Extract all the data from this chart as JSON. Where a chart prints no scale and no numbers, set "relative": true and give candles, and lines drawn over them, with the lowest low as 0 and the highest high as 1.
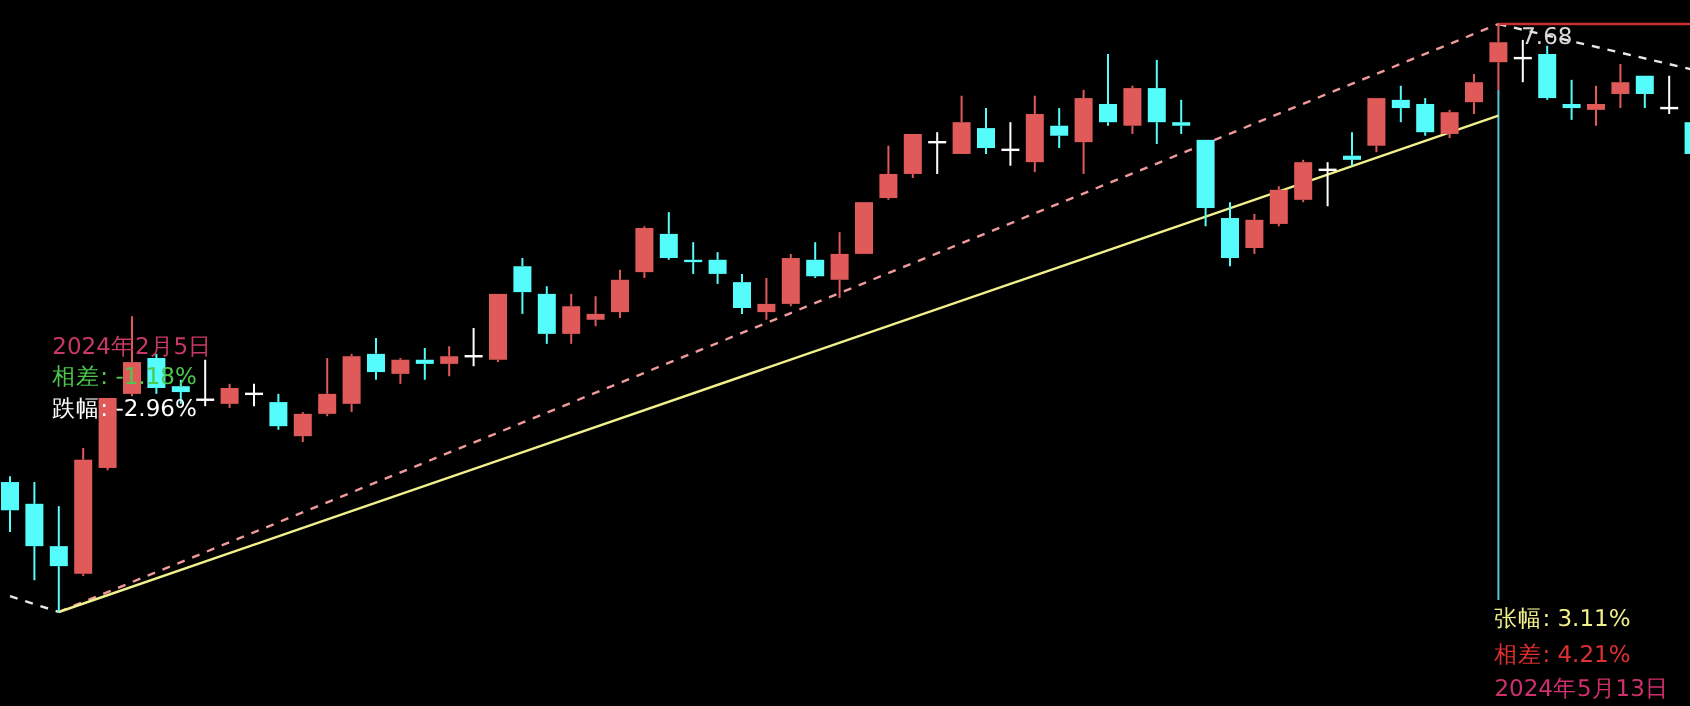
{
  "chart_data": {
    "type": "candlestick",
    "relative": true,
    "categories": [
      null,
      null,
      null,
      null,
      null,
      null,
      null,
      null,
      null,
      null,
      null,
      null,
      null,
      null,
      null,
      null,
      null,
      null,
      null,
      null,
      null,
      null,
      null,
      null,
      null,
      null,
      null,
      null,
      null,
      null,
      null,
      null,
      null,
      null,
      null,
      null,
      null,
      null,
      null,
      null,
      null,
      null,
      null,
      null,
      null,
      null,
      null,
      null,
      null,
      null,
      null,
      null,
      null,
      null,
      null,
      null,
      null,
      null,
      null,
      null,
      null,
      null,
      null,
      null,
      null,
      null,
      null,
      null,
      null,
      null
    ],
    "ohlc": [
      [
        0.221,
        0.231,
        0.136,
        0.173
      ],
      [
        0.184,
        0.221,
        0.054,
        0.112
      ],
      [
        0.112,
        0.18,
        0,
        0.078
      ],
      [
        0.065,
        0.279,
        0.061,
        0.259
      ],
      [
        0.245,
        0.364,
        0.241,
        0.364
      ],
      [
        0.371,
        0.503,
        0.367,
        0.425
      ],
      [
        0.432,
        0.439,
        0.371,
        0.381
      ],
      [
        0.384,
        0.395,
        0.354,
        0.374
      ],
      [
        0.361,
        0.429,
        0.35,
        0.361
      ],
      [
        0.354,
        0.388,
        0.347,
        0.381
      ],
      [
        0.371,
        0.388,
        0.35,
        0.371
      ],
      [
        0.357,
        0.371,
        0.31,
        0.316
      ],
      [
        0.299,
        0.34,
        0.289,
        0.337
      ],
      [
        0.337,
        0.432,
        0.333,
        0.371
      ],
      [
        0.354,
        0.439,
        0.34,
        0.435
      ],
      [
        0.439,
        0.466,
        0.395,
        0.408
      ],
      [
        0.405,
        0.432,
        0.388,
        0.429
      ],
      [
        0.429,
        0.449,
        0.395,
        0.422
      ],
      [
        0.422,
        0.452,
        0.401,
        0.435
      ],
      [
        0.435,
        0.483,
        0.418,
        0.435
      ],
      [
        0.429,
        0.541,
        0.425,
        0.541
      ],
      [
        0.588,
        0.602,
        0.507,
        0.544
      ],
      [
        0.541,
        0.554,
        0.456,
        0.473
      ],
      [
        0.473,
        0.541,
        0.456,
        0.52
      ],
      [
        0.497,
        0.537,
        0.486,
        0.507
      ],
      [
        0.51,
        0.582,
        0.5,
        0.565
      ],
      [
        0.578,
        0.656,
        0.568,
        0.653
      ],
      [
        0.643,
        0.68,
        0.599,
        0.602
      ],
      [
        0.599,
        0.629,
        0.575,
        0.595
      ],
      [
        0.599,
        0.612,
        0.558,
        0.575
      ],
      [
        0.561,
        0.575,
        0.507,
        0.517
      ],
      [
        0.51,
        0.568,
        0.497,
        0.524
      ],
      [
        0.524,
        0.609,
        0.52,
        0.602
      ],
      [
        0.599,
        0.629,
        0.568,
        0.571
      ],
      [
        0.565,
        0.646,
        0.534,
        0.609
      ],
      [
        0.609,
        0.697,
        0.609,
        0.697
      ],
      [
        0.704,
        0.793,
        0.701,
        0.745
      ],
      [
        0.745,
        0.813,
        0.738,
        0.813
      ],
      [
        0.799,
        0.816,
        0.745,
        0.799
      ],
      [
        0.779,
        0.878,
        0.779,
        0.833
      ],
      [
        0.823,
        0.857,
        0.779,
        0.789
      ],
      [
        0.786,
        0.833,
        0.759,
        0.786
      ],
      [
        0.765,
        0.878,
        0.748,
        0.847
      ],
      [
        0.827,
        0.857,
        0.789,
        0.81
      ],
      [
        0.799,
        0.888,
        0.745,
        0.874
      ],
      [
        0.864,
        0.949,
        0.827,
        0.833
      ],
      [
        0.827,
        0.895,
        0.813,
        0.891
      ],
      [
        0.891,
        0.939,
        0.796,
        0.833
      ],
      [
        0.833,
        0.871,
        0.813,
        0.827
      ],
      [
        0.803,
        0.803,
        0.656,
        0.687
      ],
      [
        0.67,
        0.697,
        0.588,
        0.602
      ],
      [
        0.619,
        0.677,
        0.609,
        0.667
      ],
      [
        0.66,
        0.724,
        0.656,
        0.718
      ],
      [
        0.701,
        0.769,
        0.697,
        0.765
      ],
      [
        0.752,
        0.765,
        0.69,
        0.752
      ],
      [
        0.776,
        0.816,
        0.759,
        0.769
      ],
      [
        0.793,
        0.874,
        0.782,
        0.874
      ],
      [
        0.871,
        0.895,
        0.833,
        0.857
      ],
      [
        0.864,
        0.874,
        0.81,
        0.816
      ],
      [
        0.813,
        0.854,
        0.806,
        0.85
      ],
      [
        0.867,
        0.915,
        0.847,
        0.901
      ],
      [
        0.935,
        1,
        0.888,
        0.969
      ],
      [
        0.942,
        0.973,
        0.901,
        0.942
      ],
      [
        0.949,
        0.963,
        0.871,
        0.874
      ],
      [
        0.864,
        0.905,
        0.837,
        0.857
      ],
      [
        0.854,
        0.895,
        0.827,
        0.864
      ],
      [
        0.881,
        0.932,
        0.857,
        0.901
      ],
      [
        0.912,
        0.912,
        0.857,
        0.881
      ],
      [
        0.857,
        0.912,
        0.847,
        0.857
      ],
      [
        0.833,
        0.833,
        0.779,
        0.779
      ]
    ],
    "series": [
      {
        "type": "line",
        "color": "#f09a9a",
        "line_style": "dashed",
        "values": [
          null,
          null,
          0,
          null,
          null,
          null,
          null,
          null,
          null,
          null,
          null,
          null,
          null,
          null,
          null,
          null,
          null,
          null,
          null,
          null,
          null,
          null,
          null,
          null,
          null,
          null,
          null,
          null,
          null,
          null,
          null,
          null,
          null,
          null,
          null,
          null,
          null,
          null,
          null,
          null,
          null,
          null,
          null,
          null,
          null,
          null,
          null,
          null,
          null,
          null,
          null,
          null,
          null,
          null,
          null,
          null,
          null,
          null,
          null,
          null,
          null,
          1,
          null,
          null,
          null,
          null,
          null,
          null,
          null,
          null
        ]
      },
      {
        "type": "line",
        "color": "#f0f08c",
        "line_style": "solid",
        "values": [
          null,
          null,
          0,
          null,
          null,
          null,
          null,
          null,
          null,
          null,
          null,
          null,
          null,
          null,
          null,
          null,
          null,
          null,
          null,
          null,
          null,
          null,
          null,
          null,
          null,
          null,
          null,
          null,
          null,
          null,
          null,
          null,
          null,
          null,
          null,
          null,
          null,
          null,
          null,
          null,
          null,
          null,
          null,
          null,
          null,
          null,
          null,
          null,
          null,
          null,
          null,
          null,
          null,
          null,
          null,
          null,
          null,
          null,
          null,
          null,
          null,
          0.844,
          null,
          null,
          null,
          null,
          null,
          null,
          null,
          null
        ]
      },
      {
        "type": "line",
        "color": "#e8e8e8",
        "line_style": "dashed",
        "values": [
          0.027,
          null,
          0,
          null,
          null,
          null,
          null,
          null,
          null,
          null,
          null,
          null,
          null,
          null,
          null,
          null,
          null,
          null,
          null,
          null,
          null,
          null,
          null,
          null,
          null,
          null,
          null,
          null,
          null,
          null,
          null,
          null,
          null,
          null,
          null,
          null,
          null,
          null,
          null,
          null,
          null,
          null,
          null,
          null,
          null,
          null,
          null,
          null,
          null,
          null,
          null,
          null,
          null,
          null,
          null,
          null,
          null,
          null,
          null,
          null,
          null,
          null,
          null,
          null,
          null,
          null,
          null,
          null,
          null,
          null
        ]
      },
      {
        "type": "line",
        "color": "#e8e8e8",
        "line_style": "dashed",
        "values": [
          null,
          null,
          null,
          null,
          null,
          null,
          null,
          null,
          null,
          null,
          null,
          null,
          null,
          null,
          null,
          null,
          null,
          null,
          null,
          null,
          null,
          null,
          null,
          null,
          null,
          null,
          null,
          null,
          null,
          null,
          null,
          null,
          null,
          null,
          null,
          null,
          null,
          null,
          null,
          null,
          null,
          null,
          null,
          null,
          null,
          null,
          null,
          null,
          null,
          null,
          null,
          null,
          null,
          null,
          null,
          null,
          null,
          null,
          null,
          null,
          null,
          1,
          null,
          null,
          null,
          null,
          null,
          null,
          null,
          0.922
        ]
      },
      {
        "type": "line",
        "color": "#c83030",
        "line_style": "solid",
        "values": [
          null,
          null,
          null,
          null,
          null,
          null,
          null,
          null,
          null,
          null,
          null,
          null,
          null,
          null,
          null,
          null,
          null,
          null,
          null,
          null,
          null,
          null,
          null,
          null,
          null,
          null,
          null,
          null,
          null,
          null,
          null,
          null,
          null,
          null,
          null,
          null,
          null,
          null,
          null,
          null,
          null,
          null,
          null,
          null,
          null,
          null,
          null,
          null,
          null,
          null,
          null,
          null,
          null,
          null,
          null,
          null,
          null,
          null,
          null,
          null,
          null,
          1,
          null,
          null,
          null,
          null,
          null,
          null,
          null,
          1
        ]
      }
    ],
    "annotations": [
      "2024年2月5日",
      "相差: -1.18%",
      "跌幅: -2.96%",
      "7.68",
      "张幅: 3.11%",
      "相差: 4.21%",
      "2024年5月13日"
    ]
  }
}
